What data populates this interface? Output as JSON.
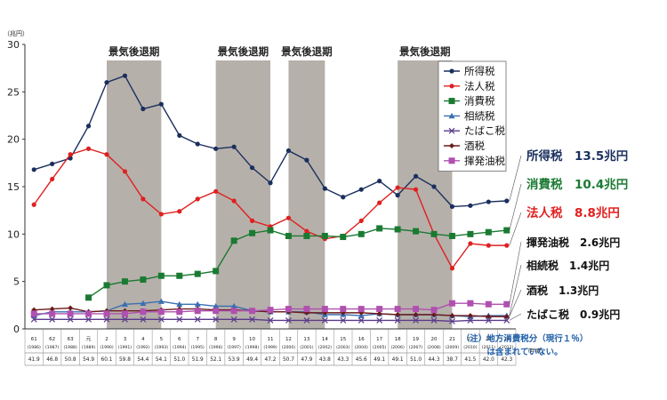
{
  "chart_data": {
    "type": "line",
    "unit_label": "（兆円）",
    "ylim": [
      0,
      30
    ],
    "yticks": [
      "0",
      "5",
      "10",
      "15",
      "20",
      "25",
      "30"
    ],
    "x_labels": [
      {
        "era": "61",
        "year": "1986"
      },
      {
        "era": "62",
        "year": "1987"
      },
      {
        "era": "63",
        "year": "1988"
      },
      {
        "era": "元",
        "year": "1989"
      },
      {
        "era": "2",
        "year": "1990"
      },
      {
        "era": "3",
        "year": "1991"
      },
      {
        "era": "4",
        "year": "1992"
      },
      {
        "era": "5",
        "year": "1993"
      },
      {
        "era": "6",
        "year": "1994"
      },
      {
        "era": "7",
        "year": "1995"
      },
      {
        "era": "8",
        "year": "1996"
      },
      {
        "era": "9",
        "year": "1997"
      },
      {
        "era": "10",
        "year": "1998"
      },
      {
        "era": "11",
        "year": "1999"
      },
      {
        "era": "12",
        "year": "2000"
      },
      {
        "era": "13",
        "year": "2001"
      },
      {
        "era": "14",
        "year": "2002"
      },
      {
        "era": "15",
        "year": "2003"
      },
      {
        "era": "16",
        "year": "2004"
      },
      {
        "era": "17",
        "year": "2005"
      },
      {
        "era": "18",
        "year": "2006"
      },
      {
        "era": "19",
        "year": "2007"
      },
      {
        "era": "20",
        "year": "2008"
      },
      {
        "era": "21",
        "year": "2009"
      },
      {
        "era": "22",
        "year": "2010"
      },
      {
        "era": "23",
        "year": "2011"
      },
      {
        "era": "24",
        "year": "2012"
      }
    ],
    "totals": [
      "41.9",
      "46.8",
      "50.8",
      "54.9",
      "60.1",
      "59.8",
      "54.4",
      "54.1",
      "51.0",
      "51.9",
      "52.1",
      "53.9",
      "49.4",
      "47.2",
      "50.7",
      "47.9",
      "43.8",
      "43.3",
      "45.6",
      "49.1",
      "49.1",
      "51.0",
      "44.3",
      "38.7",
      "41.5",
      "42.0",
      "42.3"
    ],
    "year_unit": "（年度）",
    "recessions": [
      {
        "label": "景気後退期",
        "start": 4.5,
        "end": 7.5
      },
      {
        "label": "景気後退期",
        "start": 10.5,
        "end": 13.5
      },
      {
        "label": "景気後退期",
        "start": 14.5,
        "end": 16.5
      },
      {
        "label": "景気後退期",
        "start": 20.5,
        "end": 23.5
      }
    ],
    "series": [
      {
        "name": "所得税",
        "color": "#1a2f5e",
        "marker": "circle",
        "start": 0,
        "values": [
          16.8,
          17.4,
          18.0,
          21.4,
          26.0,
          26.7,
          23.2,
          23.7,
          20.4,
          19.5,
          19.0,
          19.2,
          17.0,
          15.4,
          18.8,
          17.8,
          14.8,
          13.9,
          14.7,
          15.6,
          14.1,
          16.1,
          15.0,
          12.9,
          13.0,
          13.4,
          13.5
        ],
        "end_label": "所得税　13.5兆円",
        "label_color": "#1a2f5e"
      },
      {
        "name": "法人税",
        "color": "#e02020",
        "marker": "circle",
        "start": 0,
        "values": [
          13.1,
          15.8,
          18.4,
          19.0,
          18.4,
          16.6,
          13.7,
          12.1,
          12.4,
          13.7,
          14.5,
          13.5,
          11.4,
          10.8,
          11.7,
          10.3,
          9.5,
          9.8,
          11.4,
          13.3,
          14.9,
          14.7,
          10.0,
          6.4,
          9.0,
          8.8,
          8.8
        ],
        "end_label": "法人税　8.8兆円",
        "label_color": "#e02020"
      },
      {
        "name": "消費税",
        "color": "#1a7a32",
        "marker": "square",
        "start": 3,
        "values": [
          3.3,
          4.6,
          5.0,
          5.2,
          5.6,
          5.6,
          5.8,
          6.1,
          9.3,
          10.1,
          10.4,
          9.8,
          9.8,
          9.8,
          9.7,
          10.0,
          10.6,
          10.5,
          10.3,
          10.0,
          9.8,
          10.0,
          10.2,
          10.4
        ],
        "end_label": "消費税　10.4兆円",
        "label_color": "#1a7a32"
      },
      {
        "name": "相続税",
        "color": "#3a6fb0",
        "marker": "triangle",
        "start": 0,
        "values": [
          1.4,
          1.8,
          1.8,
          1.8,
          1.9,
          2.6,
          2.7,
          2.9,
          2.6,
          2.6,
          2.4,
          2.4,
          1.9,
          1.8,
          1.8,
          1.8,
          1.5,
          1.5,
          1.4,
          1.6,
          1.5,
          1.5,
          1.5,
          1.4,
          1.3,
          1.4,
          1.4
        ],
        "end_label": "相続税　1.4兆円",
        "label_color": "#111111"
      },
      {
        "name": "たばこ税",
        "color": "#5a3a8a",
        "marker": "x",
        "start": 0,
        "values": [
          1.0,
          1.0,
          1.0,
          1.0,
          1.0,
          1.0,
          1.0,
          1.0,
          1.0,
          1.0,
          1.0,
          1.0,
          1.0,
          0.9,
          0.9,
          0.9,
          0.9,
          0.9,
          0.9,
          0.9,
          0.9,
          0.9,
          0.9,
          0.8,
          0.9,
          0.9,
          0.9
        ],
        "end_label": "たばこ税　0.9兆円",
        "label_color": "#111111"
      },
      {
        "name": "酒税",
        "color": "#6b1a1a",
        "marker": "diamond",
        "start": 0,
        "values": [
          2.0,
          2.1,
          2.2,
          1.8,
          1.9,
          1.9,
          1.9,
          2.0,
          2.1,
          2.1,
          2.0,
          2.0,
          1.9,
          1.8,
          1.8,
          1.7,
          1.7,
          1.7,
          1.7,
          1.6,
          1.5,
          1.5,
          1.5,
          1.4,
          1.4,
          1.3,
          1.3
        ],
        "end_label": "酒税　1.3兆円",
        "label_color": "#111111"
      },
      {
        "name": "揮発油税",
        "color": "#b050b0",
        "marker": "square",
        "start": 0,
        "values": [
          1.6,
          1.6,
          1.6,
          1.6,
          1.6,
          1.6,
          1.8,
          1.8,
          1.8,
          1.9,
          1.9,
          1.9,
          1.9,
          2.0,
          2.1,
          2.1,
          2.1,
          2.1,
          2.1,
          2.1,
          2.1,
          2.1,
          2.0,
          2.7,
          2.7,
          2.6,
          2.6
        ],
        "end_label": "揮発油税　2.6兆円",
        "label_color": "#111111"
      }
    ],
    "end_label_order": [
      "所得税",
      "消費税",
      "法人税",
      "揮発油税",
      "相続税",
      "酒税",
      "たばこ税"
    ],
    "note_lines": [
      "（注）地方消費税分（現行１％）",
      "は含まれていない。"
    ]
  }
}
